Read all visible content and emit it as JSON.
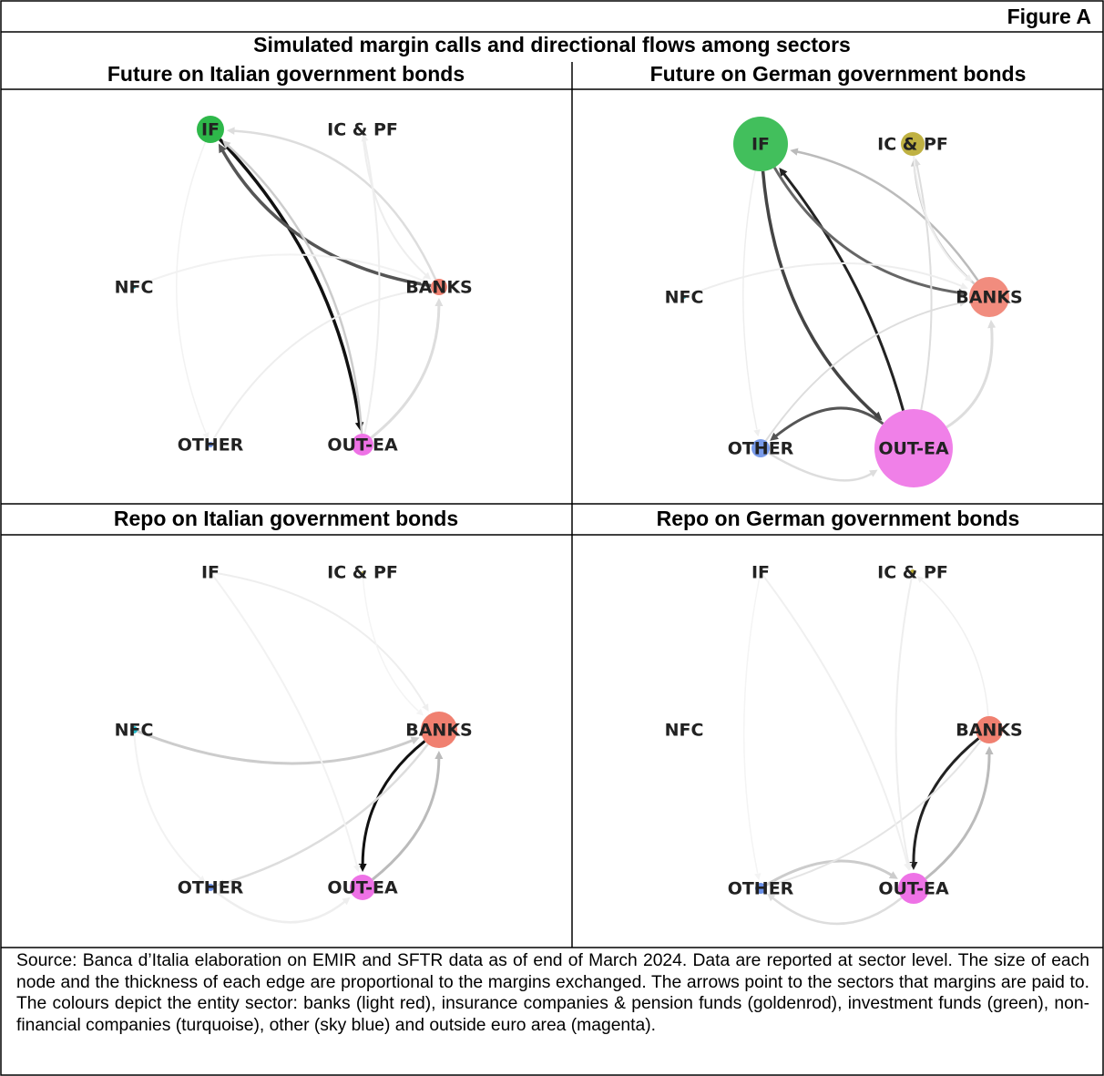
{
  "figure_label": "Figure A",
  "title": "Simulated margin calls and directional flows among sectors",
  "panels": [
    {
      "title": "Future on Italian government bonds",
      "nodes": [
        "IF",
        "IC & PF",
        "NFC",
        "BANKS",
        "OTHER",
        "OUT-EA"
      ]
    },
    {
      "title": "Future on German government bonds",
      "nodes": [
        "IF",
        "IC & PF",
        "NFC",
        "BANKS",
        "OTHER",
        "OUT-EA"
      ]
    },
    {
      "title": "Repo on Italian government bonds",
      "nodes": [
        "IF",
        "IC & PF",
        "NFC",
        "BANKS",
        "OTHER",
        "OUT-EA"
      ]
    },
    {
      "title": "Repo on German government bonds",
      "nodes": [
        "IF",
        "IC & PF",
        "NFC",
        "BANKS",
        "OTHER",
        "OUT-EA"
      ]
    }
  ],
  "source": "Source: Banca d’Italia elaboration on EMIR and SFTR data as of end of March 2024. Data are reported at sector level. The size of each node and the thickness of each edge are proportional to the margins exchanged. The arrows point to the sectors that margins are paid to. The colours depict the entity sector: banks (light red), insurance companies & pension funds (goldenrod), investment funds (green), non-financial companies (turquoise), other (sky blue) and outside euro area (magenta)."
}
